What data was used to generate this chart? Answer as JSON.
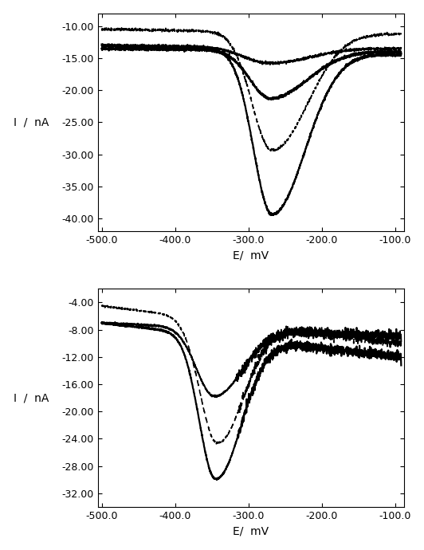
{
  "top_plot": {
    "ylim": [
      -42,
      -8
    ],
    "yticks": [
      -40.0,
      -35.0,
      -30.0,
      -25.0,
      -20.0,
      -15.0,
      -10.0
    ],
    "xlim": [
      -505,
      -88
    ],
    "xticks": [
      -500.0,
      -400.0,
      -300.0,
      -200.0,
      -100.0
    ],
    "xlabel": "E/  mV",
    "ylabel": "I  /  nA"
  },
  "bottom_plot": {
    "ylim": [
      -34,
      -2
    ],
    "yticks": [
      -32.0,
      -28.0,
      -24.0,
      -20.0,
      -16.0,
      -12.0,
      -8.0,
      -4.0
    ],
    "xlim": [
      -505,
      -88
    ],
    "xticks": [
      -500.0,
      -400.0,
      -300.0,
      -200.0,
      -100.0
    ],
    "xlabel": "E/  mV",
    "ylabel": "I  /  nA"
  },
  "line_color": "#000000",
  "bg_color": "#ffffff",
  "font_size_label": 10,
  "font_size_tick": 9
}
